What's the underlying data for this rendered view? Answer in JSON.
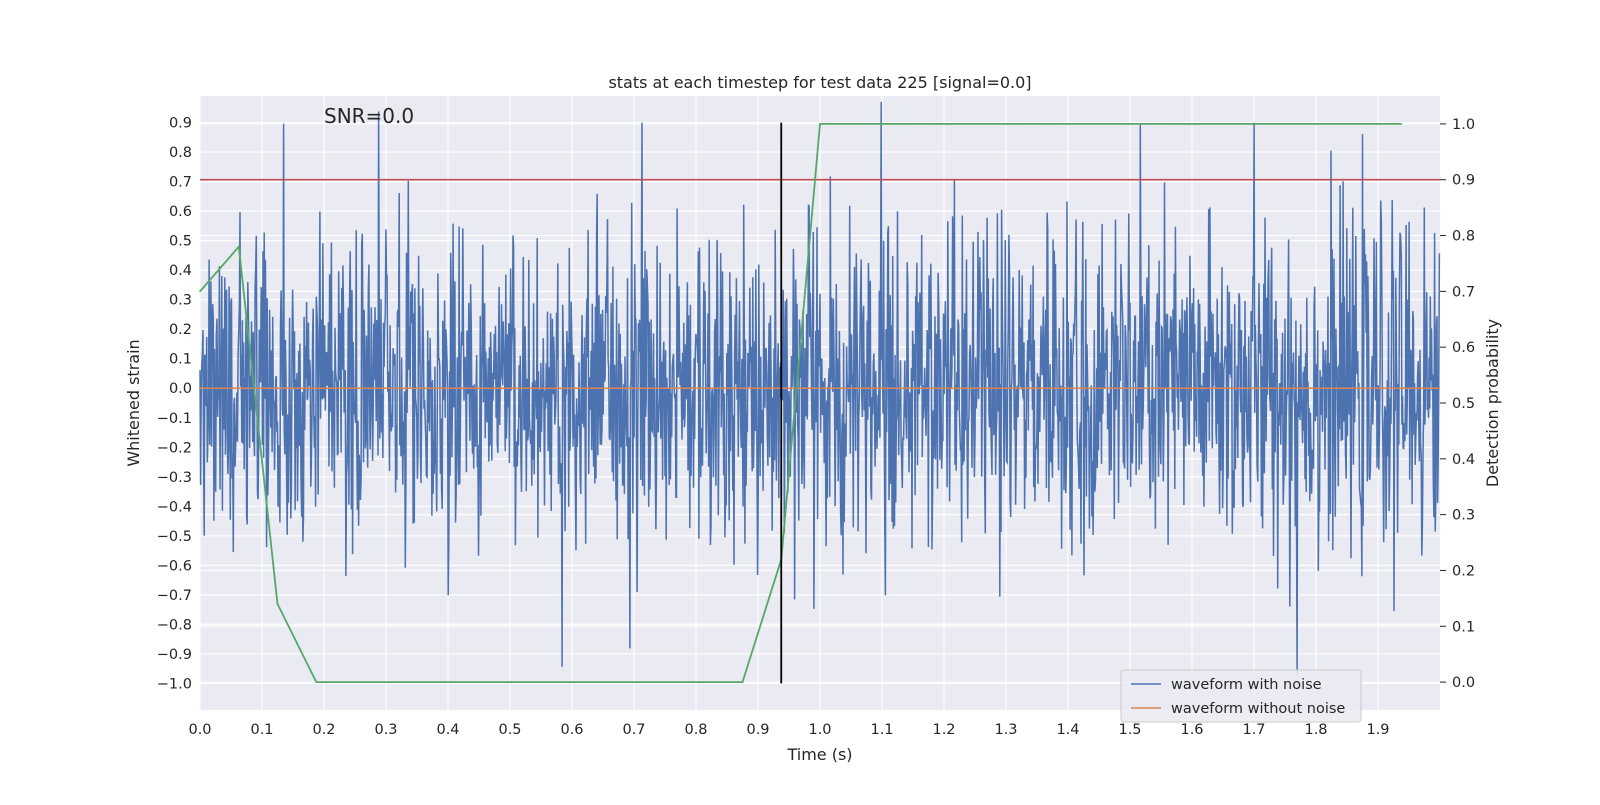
{
  "chart_data": {
    "type": "line",
    "title": "stats at each timestep for test data 225 [signal=0.0]",
    "xlabel": "Time (s)",
    "ylabel": "Whitened strain",
    "y2label": "Detection probability",
    "annotation": "SNR=0.0",
    "xlim": [
      0.0,
      2.0
    ],
    "ylim": [
      -1.09,
      0.99
    ],
    "y2lim": [
      -0.05,
      1.05
    ],
    "grid": true,
    "legend_position": "lower-right",
    "x_ticks": [
      "0.0",
      "0.1",
      "0.2",
      "0.3",
      "0.4",
      "0.5",
      "0.6",
      "0.7",
      "0.8",
      "0.9",
      "1.0",
      "1.1",
      "1.2",
      "1.3",
      "1.4",
      "1.5",
      "1.6",
      "1.7",
      "1.8",
      "1.9"
    ],
    "y_ticks": [
      "0.9",
      "0.8",
      "0.7",
      "0.6",
      "0.5",
      "0.4",
      "0.3",
      "0.2",
      "0.1",
      "0.0",
      "−0.1",
      "−0.2",
      "−0.3",
      "−0.4",
      "−0.5",
      "−0.6",
      "−0.7",
      "−0.8",
      "−0.9",
      "−1.0"
    ],
    "y2_ticks": [
      "1.0",
      "0.9",
      "0.8",
      "0.7",
      "0.6",
      "0.5",
      "0.4",
      "0.3",
      "0.2",
      "0.1",
      "0.0"
    ],
    "series": [
      {
        "name": "waveform with noise",
        "color": "#4c72b0",
        "axis": "left",
        "style": "noise",
        "samples": 2048,
        "peak_max": 0.9,
        "peak_min": -0.97
      },
      {
        "name": "waveform without noise",
        "color": "#dd8452",
        "axis": "left",
        "style": "flat",
        "value": 0.0
      }
    ],
    "detection_probability": {
      "color": "#55a868",
      "axis": "right",
      "x": [
        0.0,
        0.0625,
        0.125,
        0.1875,
        0.25,
        0.3125,
        0.375,
        0.4375,
        0.5,
        0.5625,
        0.625,
        0.6875,
        0.75,
        0.8125,
        0.875,
        0.9375,
        1.0,
        1.0625,
        1.125,
        1.1875,
        1.25,
        1.3125,
        1.375,
        1.4375,
        1.5,
        1.5625,
        1.625,
        1.6875,
        1.75,
        1.8125,
        1.875,
        1.9375
      ],
      "y": [
        0.7,
        0.78,
        0.14,
        0.0,
        0.0,
        0.0,
        0.0,
        0.0,
        0.0,
        0.0,
        0.0,
        0.0,
        0.0,
        0.0,
        0.0,
        0.22,
        1.0,
        1.0,
        1.0,
        1.0,
        1.0,
        1.0,
        1.0,
        1.0,
        1.0,
        1.0,
        1.0,
        1.0,
        1.0,
        1.0,
        1.0,
        1.0
      ]
    },
    "threshold": {
      "color": "#c44e52",
      "axis": "right",
      "value": 0.9
    },
    "marker_line": {
      "color": "#000000",
      "x": 0.9375,
      "y_range": [
        -1.0,
        0.9
      ]
    }
  }
}
